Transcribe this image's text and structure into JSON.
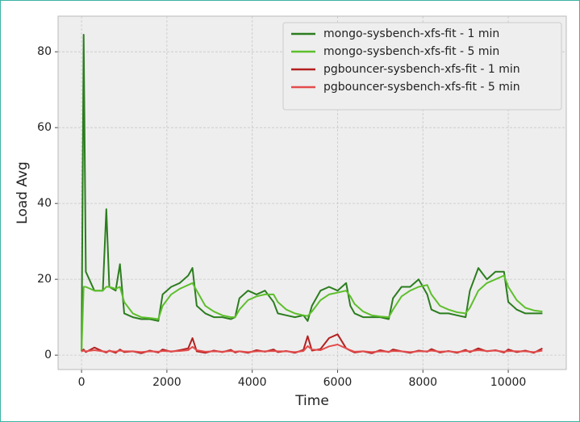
{
  "chart_data": {
    "type": "line",
    "xlabel": "Time",
    "ylabel": "Load Avg",
    "x": [
      0,
      50,
      100,
      300,
      500,
      580,
      650,
      800,
      900,
      1000,
      1200,
      1400,
      1600,
      1800,
      1900,
      2100,
      2300,
      2500,
      2600,
      2700,
      2900,
      3100,
      3300,
      3500,
      3600,
      3700,
      3900,
      4100,
      4300,
      4500,
      4600,
      4800,
      5000,
      5200,
      5300,
      5400,
      5600,
      5800,
      6000,
      6200,
      6300,
      6400,
      6600,
      6800,
      7000,
      7200,
      7300,
      7500,
      7700,
      7900,
      8100,
      8200,
      8400,
      8600,
      8800,
      9000,
      9100,
      9300,
      9500,
      9700,
      9900,
      10000,
      10200,
      10400,
      10600,
      10800
    ],
    "series": [
      {
        "name": "mongo-sysbench-xfs-fit - 1 min",
        "color": "#2b7d1e",
        "values": [
          1,
          84.5,
          22,
          17,
          17,
          38.5,
          18,
          17,
          24,
          11,
          10,
          9.5,
          9.5,
          9,
          16,
          18,
          19,
          21,
          23,
          13,
          11,
          10,
          10,
          9.5,
          10,
          15,
          17,
          16,
          17,
          14,
          11,
          10.5,
          10,
          10.5,
          9,
          13,
          17,
          18,
          17,
          19,
          13,
          11,
          10,
          10,
          10,
          9.5,
          15,
          18,
          18,
          20,
          16,
          12,
          11,
          11,
          10.5,
          10,
          17,
          23,
          20,
          22,
          22,
          14,
          12,
          11,
          11,
          11
        ]
      },
      {
        "name": "mongo-sysbench-xfs-fit - 5 min",
        "color": "#5dbf2c",
        "values": [
          1,
          18,
          18,
          17,
          17,
          18,
          18,
          17.5,
          18,
          14,
          11,
          10,
          9.8,
          9.5,
          13,
          16,
          17.5,
          18.5,
          19,
          17,
          13,
          11.5,
          10.5,
          10,
          10,
          12,
          14.5,
          15.5,
          16,
          16,
          14,
          12,
          11,
          10.5,
          10.3,
          11.5,
          14.5,
          16,
          16.5,
          17,
          15.5,
          13.5,
          11.5,
          10.5,
          10.2,
          10,
          12,
          15.5,
          17,
          18,
          18.5,
          16,
          13,
          12,
          11.3,
          11,
          12.5,
          17,
          19,
          20,
          21,
          18,
          14.5,
          12.5,
          11.8,
          11.5
        ]
      },
      {
        "name": "pgbouncer-sysbench-xfs-fit - 1 min",
        "color": "#b32020",
        "values": [
          1,
          1.5,
          0.8,
          2,
          1,
          0.7,
          1.2,
          0.6,
          1.5,
          0.8,
          1,
          0.5,
          1.2,
          0.7,
          1.5,
          0.9,
          1.3,
          1.8,
          4.5,
          1,
          0.6,
          1.2,
          0.8,
          1.4,
          0.7,
          1,
          0.6,
          1.3,
          0.9,
          1.5,
          0.8,
          1.1,
          0.6,
          1.4,
          5,
          1.2,
          1.6,
          4.5,
          5.5,
          1.8,
          1.2,
          0.7,
          1,
          0.5,
          1.3,
          0.8,
          1.5,
          1,
          0.6,
          1.2,
          0.9,
          1.6,
          0.7,
          1.1,
          0.6,
          1.4,
          0.8,
          1.8,
          1,
          1.3,
          0.7,
          1.5,
          0.8,
          1.2,
          0.6,
          1.8
        ]
      },
      {
        "name": "pgbouncer-sysbench-xfs-fit - 5 min",
        "color": "#e34c4c",
        "values": [
          1,
          1.2,
          1,
          1.3,
          1,
          0.9,
          1.1,
          0.9,
          1.2,
          1,
          1,
          0.8,
          1,
          0.9,
          1.1,
          1,
          1.1,
          1.3,
          2.2,
          1.3,
          0.9,
          1,
          0.9,
          1.1,
          0.9,
          1,
          0.8,
          1,
          1,
          1.1,
          1,
          1,
          0.8,
          1.1,
          2.4,
          1.5,
          1.3,
          2.3,
          2.8,
          1.8,
          1.3,
          0.9,
          1,
          0.8,
          1,
          0.9,
          1.1,
          1,
          0.8,
          1,
          1,
          1.2,
          0.9,
          1,
          0.8,
          1.1,
          1,
          1.3,
          1.1,
          1.2,
          0.9,
          1.1,
          1,
          1,
          0.8,
          1.2
        ]
      }
    ],
    "xlim": [
      -550,
      11360
    ],
    "ylim": [
      -3.8,
      89.4
    ],
    "xticks": [
      0,
      2000,
      4000,
      6000,
      8000,
      10000
    ],
    "yticks": [
      0,
      20,
      40,
      60,
      80
    ],
    "grid": true,
    "legend": "upper right"
  }
}
